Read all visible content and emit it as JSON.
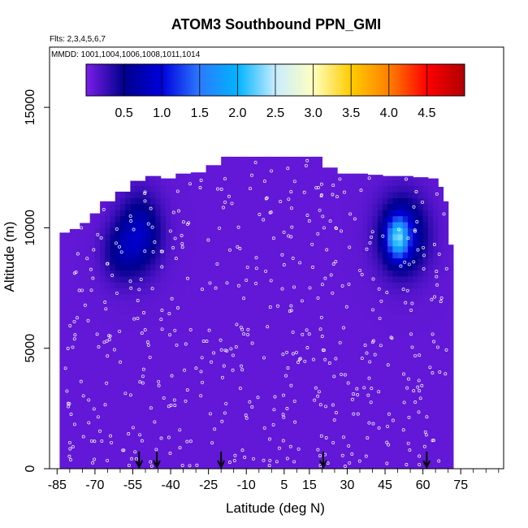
{
  "chart_data": {
    "type": "heatmap",
    "title": "ATOM3 Southbound PPN_GMI",
    "subtitle_flights": "Flts: 2,3,4,5,6,7",
    "subtitle_dates": "MMDD: 1001,1004,1006,1008,1011,1014",
    "xlabel": "Latitude (deg N)",
    "ylabel": "Altitude (m)",
    "xlim": [
      -88,
      92
    ],
    "ylim": [
      0,
      17500
    ],
    "x_ticks": [
      -85,
      -70,
      -55,
      -40,
      -25,
      -10,
      5,
      15,
      30,
      45,
      60,
      75
    ],
    "x_minor_ticks": [
      -80,
      -75,
      -65,
      -60,
      -50,
      -45,
      -35,
      -30,
      -20,
      -15,
      -5,
      0,
      10,
      20,
      25,
      35,
      40,
      50,
      55,
      65,
      70,
      80,
      85,
      90
    ],
    "y_ticks": [
      0,
      5000,
      10000,
      15000
    ],
    "colorbar": {
      "min": 0,
      "max": 5,
      "ticks": [
        0.5,
        1.0,
        1.5,
        2.0,
        2.5,
        3.0,
        3.5,
        4.0,
        4.5
      ],
      "tick_labels": [
        "0.5",
        "1.0",
        "1.5",
        "2.0",
        "2.5",
        "3.0",
        "3.5",
        "4.0",
        "4.5"
      ],
      "colors": [
        "#7a1ee8",
        "#00008c",
        "#0000dd",
        "#2b7aff",
        "#00b4ff",
        "#c8ecff",
        "#ffffc0",
        "#ffcc00",
        "#ff8000",
        "#ff0000",
        "#b00000"
      ]
    },
    "background_value": 0.1,
    "hotspots": [
      {
        "lat": -52,
        "alt": 9800,
        "dlat": 8,
        "dalt": 1500,
        "value": 0.7
      },
      {
        "lat": -60,
        "alt": 9000,
        "dlat": 7,
        "dalt": 1200,
        "value": 0.4
      },
      {
        "lat": 52,
        "alt": 9700,
        "dlat": 9,
        "dalt": 1500,
        "value": 0.9
      },
      {
        "lat": 50,
        "alt": 9600,
        "dlat": 4,
        "dalt": 800,
        "value": 1.4
      }
    ],
    "flight_marker_lats": [
      -52.5,
      -45.5,
      -20,
      20.5,
      61.5
    ],
    "color_mapping": {
      "mapping": "linear",
      "endpoints": [
        0,
        5
      ]
    }
  }
}
